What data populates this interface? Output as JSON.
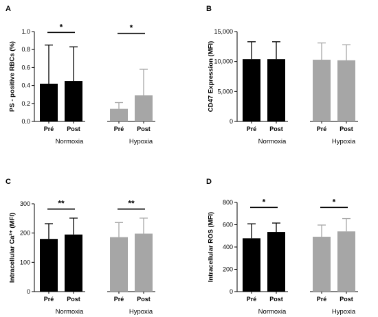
{
  "colors": {
    "normoxia": "#000000",
    "hypoxia": "#a6a6a6",
    "axis": "#000000"
  },
  "chart_data": [
    {
      "type": "bar",
      "panel": "A",
      "ylabel": "PS - positive RBCs (%)",
      "ylim": [
        0,
        1.0
      ],
      "yticks": [
        0,
        0.2,
        0.4,
        0.6,
        0.8,
        1.0
      ],
      "ytick_labels": [
        "0.0",
        "0.2",
        "0.4",
        "0.6",
        "0.8",
        "1.0"
      ],
      "categories": [
        "Pré",
        "Post",
        "Pré",
        "Post"
      ],
      "groups": [
        {
          "label": "Normoxia",
          "color": "#000000"
        },
        {
          "label": "Hypoxia",
          "color": "#a6a6a6"
        }
      ],
      "values": [
        0.42,
        0.45,
        0.14,
        0.29
      ],
      "errors": [
        0.43,
        0.38,
        0.07,
        0.29
      ],
      "significance": [
        {
          "group": 0,
          "label": "*",
          "y": 0.99
        },
        {
          "group": 1,
          "label": "*",
          "y": 0.98
        }
      ]
    },
    {
      "type": "bar",
      "panel": "B",
      "ylabel": "CD47 Expression (MFI)",
      "ylim": [
        0,
        15000
      ],
      "yticks": [
        0,
        5000,
        10000,
        15000
      ],
      "ytick_labels": [
        "0",
        "5,000",
        "10,000",
        "15,000"
      ],
      "categories": [
        "Pré",
        "Post",
        "Pré",
        "Post"
      ],
      "groups": [
        {
          "label": "Normoxia",
          "color": "#000000"
        },
        {
          "label": "Hypoxia",
          "color": "#a6a6a6"
        }
      ],
      "values": [
        10400,
        10400,
        10300,
        10200
      ],
      "errors": [
        2900,
        2900,
        2800,
        2600
      ],
      "significance": []
    },
    {
      "type": "bar",
      "panel": "C",
      "ylabel": "Intracellular Ca²⁺ (MFI)",
      "ylim": [
        0,
        300
      ],
      "yticks": [
        0,
        100,
        200,
        300
      ],
      "ytick_labels": [
        "0",
        "100",
        "200",
        "300"
      ],
      "categories": [
        "Pré",
        "Post",
        "Pré",
        "Post"
      ],
      "groups": [
        {
          "label": "Normoxia",
          "color": "#000000"
        },
        {
          "label": "Hypoxia",
          "color": "#a6a6a6"
        }
      ],
      "values": [
        180,
        195,
        186,
        198
      ],
      "errors": [
        52,
        56,
        50,
        53
      ],
      "significance": [
        {
          "group": 0,
          "label": "**",
          "y": 282
        },
        {
          "group": 1,
          "label": "**",
          "y": 282
        }
      ]
    },
    {
      "type": "bar",
      "panel": "D",
      "ylabel": "Intracellular ROS (MFI)",
      "ylim": [
        0,
        800
      ],
      "yticks": [
        0,
        200,
        400,
        600,
        800
      ],
      "ytick_labels": [
        "0",
        "200",
        "400",
        "600",
        "800"
      ],
      "categories": [
        "Pré",
        "Post",
        "Pré",
        "Post"
      ],
      "groups": [
        {
          "label": "Normoxia",
          "color": "#000000"
        },
        {
          "label": "Hypoxia",
          "color": "#a6a6a6"
        }
      ],
      "values": [
        478,
        535,
        492,
        540
      ],
      "errors": [
        130,
        80,
        105,
        115
      ],
      "significance": [
        {
          "group": 0,
          "label": "*",
          "y": 755
        },
        {
          "group": 1,
          "label": "*",
          "y": 755
        }
      ]
    }
  ]
}
